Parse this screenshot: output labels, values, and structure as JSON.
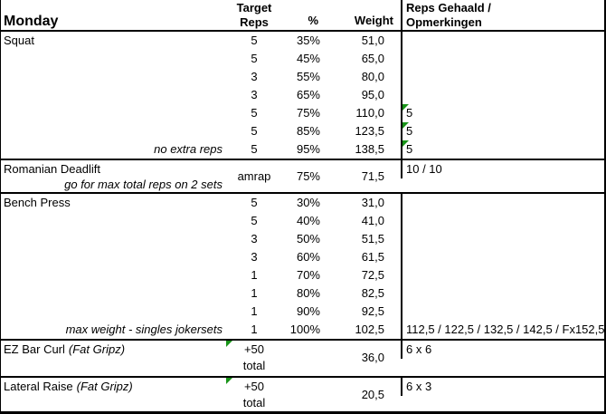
{
  "title": "Monday",
  "columns": {
    "target_line1": "Target",
    "target_line2": "Reps",
    "percent": "%",
    "weight": "Weight",
    "result_line1": "Reps Gehaald /",
    "result_line2": "Opmerkingen"
  },
  "colors": {
    "background": "#ffffff",
    "text": "#000000",
    "border": "#000000",
    "comment_marker_green": "#189418"
  },
  "icons": {
    "comment_marker": "corner-triangle"
  },
  "sections": [
    {
      "name": "Squat",
      "rows": [
        {
          "note": "",
          "reps": "5",
          "pct": "35%",
          "weight": "51,0",
          "result": "",
          "marker": false
        },
        {
          "note": "",
          "reps": "5",
          "pct": "45%",
          "weight": "65,0",
          "result": "",
          "marker": false
        },
        {
          "note": "",
          "reps": "3",
          "pct": "55%",
          "weight": "80,0",
          "result": "",
          "marker": false
        },
        {
          "note": "",
          "reps": "3",
          "pct": "65%",
          "weight": "95,0",
          "result": "",
          "marker": false
        },
        {
          "note": "",
          "reps": "5",
          "pct": "75%",
          "weight": "110,0",
          "result": "5",
          "marker": true
        },
        {
          "note": "",
          "reps": "5",
          "pct": "85%",
          "weight": "123,5",
          "result": "5",
          "marker": true
        },
        {
          "note": "no extra reps",
          "reps": "5",
          "pct": "95%",
          "weight": "138,5",
          "result": "5",
          "marker": true
        }
      ]
    },
    {
      "name": "Romanian Deadlift",
      "note": "go for max total reps on 2 sets",
      "reps": "amrap",
      "pct": "75%",
      "weight": "71,5",
      "result": "10 / 10",
      "marker": false
    },
    {
      "name": "Bench Press",
      "rows": [
        {
          "note": "",
          "reps": "5",
          "pct": "30%",
          "weight": "31,0",
          "result": "",
          "marker": false
        },
        {
          "note": "",
          "reps": "5",
          "pct": "40%",
          "weight": "41,0",
          "result": "",
          "marker": false
        },
        {
          "note": "",
          "reps": "3",
          "pct": "50%",
          "weight": "51,5",
          "result": "",
          "marker": false
        },
        {
          "note": "",
          "reps": "3",
          "pct": "60%",
          "weight": "61,5",
          "result": "",
          "marker": false
        },
        {
          "note": "",
          "reps": "1",
          "pct": "70%",
          "weight": "72,5",
          "result": "",
          "marker": false
        },
        {
          "note": "",
          "reps": "1",
          "pct": "80%",
          "weight": "82,5",
          "result": "",
          "marker": false
        },
        {
          "note": "",
          "reps": "1",
          "pct": "90%",
          "weight": "92,5",
          "result": "",
          "marker": false
        },
        {
          "note": "max weight - singles jokersets",
          "reps": "1",
          "pct": "100%",
          "weight": "102,5",
          "result": "112,5 / 122,5 / 132,5 / 142,5 / Fx152,5",
          "marker": false
        }
      ]
    },
    {
      "name": "EZ Bar Curl",
      "name_suffix": "(Fat Gripz)",
      "reps_line1": "+50",
      "reps_line2": "total",
      "pct": "",
      "weight": "36,0",
      "result": "6 x 6",
      "marker": true
    },
    {
      "name": "Lateral Raise",
      "name_suffix": "(Fat Gripz)",
      "reps_line1": "+50",
      "reps_line2": "total",
      "pct": "",
      "weight": "20,5",
      "result": "6 x 3",
      "marker": true
    }
  ]
}
